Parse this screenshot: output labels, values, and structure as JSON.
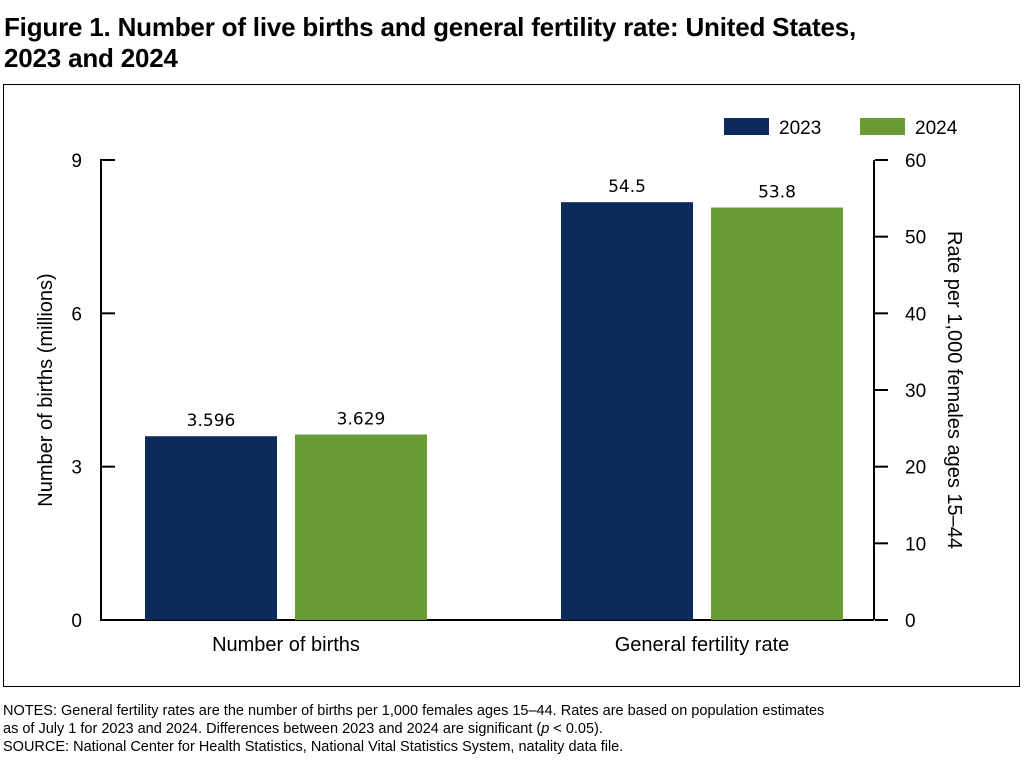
{
  "title_line1": "Figure 1. Number of live births and general fertility rate: United States,",
  "title_line2": "2023 and 2024",
  "chart_data": {
    "type": "bar",
    "categories": [
      "Number of births",
      "General fertility rate"
    ],
    "series": [
      {
        "name": "2023",
        "color": "#0c2a5a",
        "values": [
          3.596,
          54.5
        ],
        "labels": [
          "3.596",
          "54.5"
        ]
      },
      {
        "name": "2024",
        "color": "#6a9b35",
        "values": [
          3.629,
          53.8
        ],
        "labels": [
          "3.629",
          "53.8"
        ]
      }
    ],
    "left_axis": {
      "label": "Number of births (millions)",
      "min": 0,
      "max": 9,
      "ticks": [
        0,
        3,
        6,
        9
      ],
      "applies_to": "Number of births"
    },
    "right_axis": {
      "label": "Rate per 1,000 females ages 15–44",
      "min": 0,
      "max": 60,
      "ticks": [
        0,
        10,
        20,
        30,
        40,
        50,
        60
      ],
      "applies_to": "General fertility rate"
    },
    "legend_position": "top-right",
    "grid": false
  },
  "notes": {
    "line1": "NOTES: General fertility rates are the number of births per 1,000 females ages 15–44. Rates are based on population estimates",
    "line2_a": "as of July 1 for 2023 and 2024. Differences between 2023 and 2024 are significant (",
    "line2_p": "p",
    "line2_b": " < 0.05).",
    "source": "SOURCE: National Center for Health Statistics, National Vital Statistics System, natality data file."
  }
}
